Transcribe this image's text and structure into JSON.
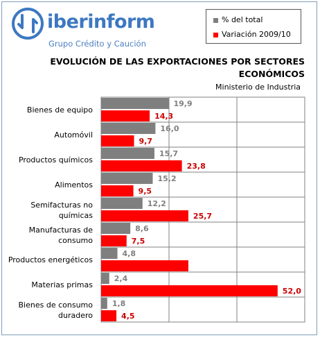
{
  "brand": {
    "name_bold": "iber",
    "name_rest": "inform",
    "tagline": "Grupo Crédito y Caución",
    "colors": {
      "logo": "#3d78c1"
    },
    "icon": "refresh-arrows-icon"
  },
  "colors": {
    "gray": "#7f7f7f",
    "red": "#ff0000",
    "grid": "#808080",
    "label_gray": "#808080",
    "label_red": "#cc0000"
  },
  "chart_data": {
    "type": "bar",
    "orientation": "horizontal",
    "title_line1": "EVOLUCIÓN DE LAS EXPORTACIONES POR SECTORES",
    "title_line2": "ECONÓMICOS",
    "subtitle": "Ministerio de Industria",
    "categories": [
      [
        "Bienes de equipo"
      ],
      [
        "Automóvil"
      ],
      [
        "Productos químicos"
      ],
      [
        "Alimentos"
      ],
      [
        "Semifacturas no",
        "químicas"
      ],
      [
        "Manufacturas de",
        "consumo"
      ],
      [
        "Productos energéticos"
      ],
      [
        "Materias primas"
      ],
      [
        "Bienes de consumo",
        "duradero"
      ]
    ],
    "series": [
      {
        "name": "% del total",
        "color": "#7f7f7f",
        "values": [
          19.9,
          16.0,
          15.7,
          15.2,
          12.2,
          8.6,
          4.8,
          2.4,
          1.8
        ],
        "labels": [
          "19,9",
          "16,0",
          "15,7",
          "15,2",
          "12,2",
          "8,6",
          "4,8",
          "2,4",
          "1,8"
        ]
      },
      {
        "name": "Variación 2009/10",
        "color": "#ff0000",
        "values": [
          14.3,
          9.7,
          23.8,
          9.5,
          25.7,
          7.5,
          25.7,
          52.0,
          4.5
        ],
        "labels": [
          "14,3",
          "9,7",
          "23,8",
          "9,5",
          "25,7",
          "7,5",
          "",
          "52,0",
          "4,5"
        ]
      }
    ],
    "xlim": [
      0,
      60
    ],
    "grid": true,
    "legend_position": "top-right"
  }
}
